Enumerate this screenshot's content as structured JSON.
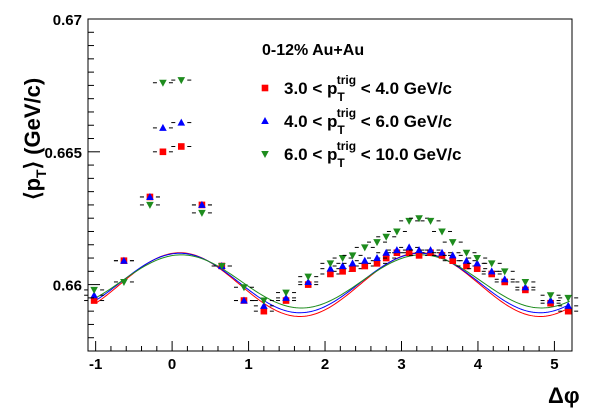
{
  "chart_data": {
    "type": "scatter",
    "title": "",
    "annotation": "0-12% Au+Au",
    "xlabel": "Δφ",
    "ylabel_main": "⟨p",
    "ylabel_sub": "T",
    "ylabel_close": "⟩",
    "ylabel_unit": "(GeV/c)",
    "xlim": [
      -1.1,
      5.23
    ],
    "ylim": [
      0.6575,
      0.67
    ],
    "x_ticks": [
      -1,
      0,
      1,
      2,
      3,
      4,
      5
    ],
    "x_tick_labels": [
      "-1",
      "0",
      "1",
      "2",
      "3",
      "4",
      "5"
    ],
    "y_ticks": [
      0.66,
      0.665,
      0.67
    ],
    "y_tick_labels": [
      "0.66",
      "0.665",
      "0.67"
    ],
    "legend_position": "top-right",
    "x": [
      -1.02,
      -0.63,
      -0.29,
      0.0,
      0.39,
      0.65,
      0.94,
      1.2,
      1.49,
      1.78,
      2.07,
      2.23,
      2.36,
      2.52,
      2.68,
      2.8,
      2.94,
      3.1,
      3.23,
      3.38,
      3.53,
      3.67,
      3.85,
      3.99,
      4.18,
      4.35,
      4.62,
      4.95,
      5.18
    ],
    "series": [
      {
        "name_prefix": "3.0 < p",
        "name_sub": "T",
        "name_sup": "trig",
        "name_suffix": " < 4.0 GeV/c",
        "color": "#ff0000",
        "marker": "square",
        "values": [
          0.6594,
          0.6609,
          0.6633,
          null,
          0.663,
          0.6607,
          0.6594,
          0.659,
          0.6594,
          0.66,
          0.6604,
          0.6605,
          0.6606,
          0.6607,
          0.6608,
          0.661,
          0.6612,
          0.6612,
          0.6611,
          0.6612,
          0.6611,
          0.6609,
          0.6607,
          0.6606,
          0.6604,
          0.6601,
          0.6598,
          0.6593,
          0.659
        ]
      },
      {
        "name_prefix": "4.0 < p",
        "name_sub": "T",
        "name_sup": "trig",
        "name_suffix": " < 6.0 GeV/c",
        "color": "#0000ff",
        "marker": "triangle-up",
        "values": [
          0.6596,
          0.6609,
          0.6633,
          null,
          0.663,
          0.6607,
          0.6594,
          0.6592,
          0.6595,
          0.6601,
          0.6606,
          0.6607,
          0.6608,
          0.6609,
          0.661,
          0.6612,
          0.6613,
          0.6614,
          0.6613,
          0.6613,
          0.6612,
          0.6611,
          0.6609,
          0.6608,
          0.6605,
          0.6602,
          0.6599,
          0.6594,
          0.6592
        ]
      },
      {
        "name_prefix": "6.0 < p",
        "name_sub": "T",
        "name_sup": "trig",
        "name_suffix": " < 10.0 GeV/c",
        "color": "#1e8c1e",
        "marker": "triangle-down",
        "values": [
          0.6598,
          0.6601,
          0.663,
          null,
          0.6627,
          0.6607,
          0.6599,
          0.6594,
          0.6597,
          0.6603,
          0.6608,
          0.661,
          0.6611,
          0.6614,
          0.6616,
          0.6618,
          0.662,
          0.6624,
          0.6625,
          0.6624,
          0.662,
          0.6616,
          0.6612,
          0.661,
          0.6608,
          0.6605,
          0.6601,
          0.6596,
          0.6595
        ]
      }
    ],
    "near_side_points": [
      {
        "series": 0,
        "x": -0.12,
        "y": 0.665
      },
      {
        "series": 0,
        "x": 0.12,
        "y": 0.6652
      },
      {
        "series": 1,
        "x": -0.12,
        "y": 0.6659
      },
      {
        "series": 1,
        "x": 0.12,
        "y": 0.6661
      },
      {
        "series": 2,
        "x": -0.12,
        "y": 0.6676
      },
      {
        "series": 2,
        "x": 0.12,
        "y": 0.6677
      }
    ],
    "fit_curves": [
      {
        "series": 0,
        "form": "cos2",
        "base": 0.66,
        "amplitude": 0.0012,
        "phase": 0.1
      },
      {
        "series": 1,
        "form": "cos2",
        "base": 0.66006,
        "amplitude": 0.00112,
        "phase": 0.1
      },
      {
        "series": 2,
        "form": "cos2",
        "base": 0.66012,
        "amplitude": 0.001,
        "phase": 0.12
      }
    ]
  }
}
